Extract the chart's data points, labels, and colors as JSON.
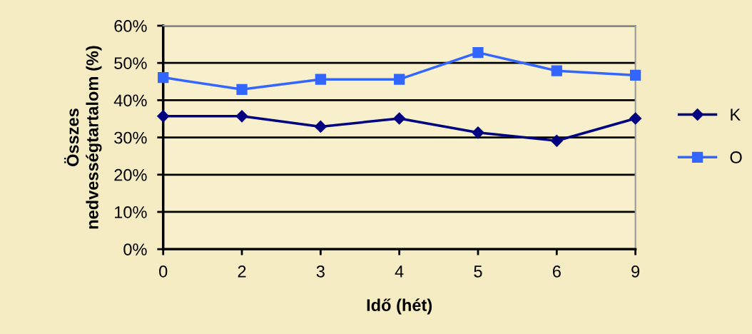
{
  "chart_data": {
    "type": "line",
    "xlabel": "Idő (hét)",
    "ylabel": "Összes\nnedvességtartalom (%)",
    "categories": [
      "0",
      "2",
      "3",
      "4",
      "5",
      "6",
      "9"
    ],
    "series": [
      {
        "name": "K",
        "color": "#000080",
        "marker": "diamond",
        "values": [
          35.7,
          35.7,
          32.9,
          35.1,
          31.3,
          29.1,
          35.1
        ]
      },
      {
        "name": "O",
        "color": "#3366ff",
        "marker": "square",
        "values": [
          46.1,
          42.9,
          45.6,
          45.6,
          52.8,
          47.9,
          46.7
        ]
      }
    ],
    "ylim": [
      0,
      60
    ],
    "yticks": [
      {
        "value": 0,
        "label": "0%"
      },
      {
        "value": 10,
        "label": "10%"
      },
      {
        "value": 20,
        "label": "20%"
      },
      {
        "value": 30,
        "label": "30%"
      },
      {
        "value": 40,
        "label": "40%"
      },
      {
        "value": 50,
        "label": "50%"
      },
      {
        "value": 60,
        "label": "60%"
      }
    ],
    "grid": "y",
    "legend": "right",
    "line_style": "solid"
  }
}
